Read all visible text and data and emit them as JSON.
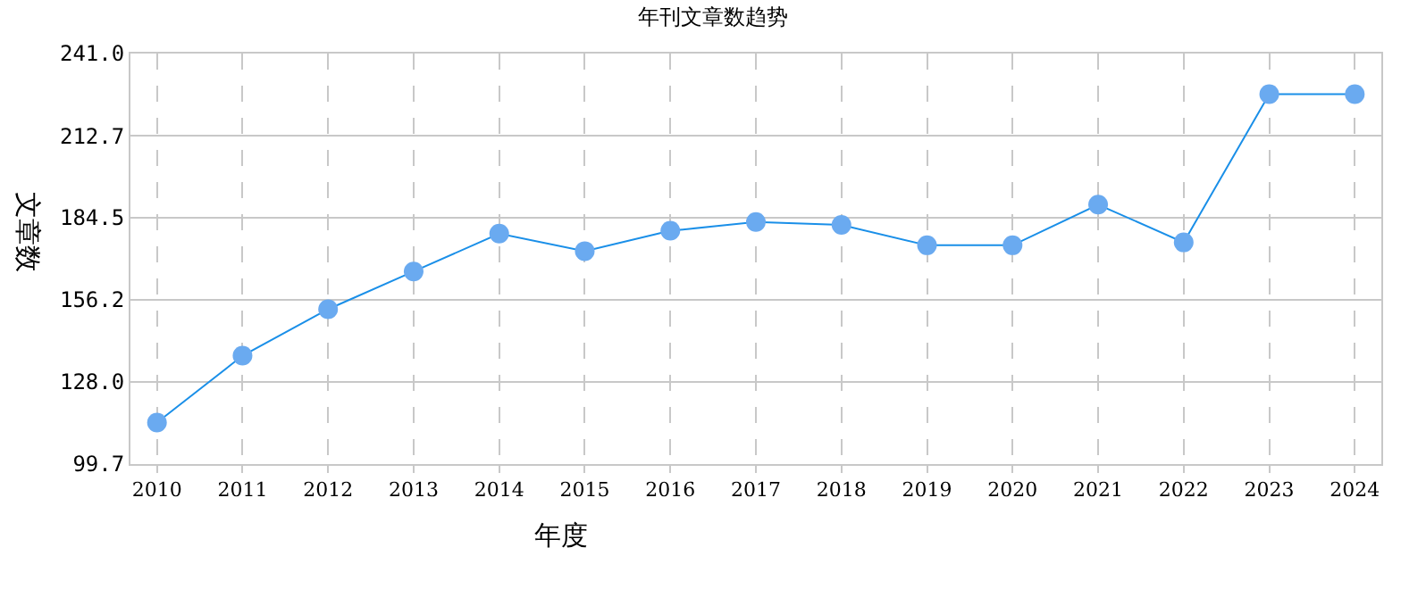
{
  "chart_data": {
    "type": "line",
    "title": "年刊文章数趋势",
    "xlabel": "年度",
    "ylabel": "文章数",
    "categories": [
      "2010",
      "2011",
      "2012",
      "2013",
      "2014",
      "2015",
      "2016",
      "2017",
      "2018",
      "2019",
      "2020",
      "2021",
      "2022",
      "2023",
      "2024"
    ],
    "series": [
      {
        "color": "#1a8fe8",
        "colors": [
          "#6aaaf0",
          "#6aaaf0",
          "#6aaaf0",
          "#6aaaf0",
          "#6aaaf0",
          "#6aaaf0",
          "#6aaaf0",
          "#6aaaf0",
          "#6aaaf0",
          "#6aaaf0",
          "#6aaaf0",
          "#6aaaf0",
          "#6aaaf0",
          "#6aaaf0",
          "#6aaaf0"
        ],
        "values": [
          114,
          137,
          153,
          166,
          179,
          173,
          180,
          183,
          182,
          175,
          175,
          189,
          176,
          227,
          227
        ]
      }
    ],
    "ylim": [
      99.7,
      241.0
    ],
    "yticks": [
      99.7,
      {
        "value": 128,
        "label": "128.0"
      },
      156.2,
      184.5,
      212.7,
      {
        "value": 241,
        "label": "241.0"
      }
    ],
    "grid": true,
    "marker": "circle",
    "line_style": "solid",
    "legend": false
  }
}
